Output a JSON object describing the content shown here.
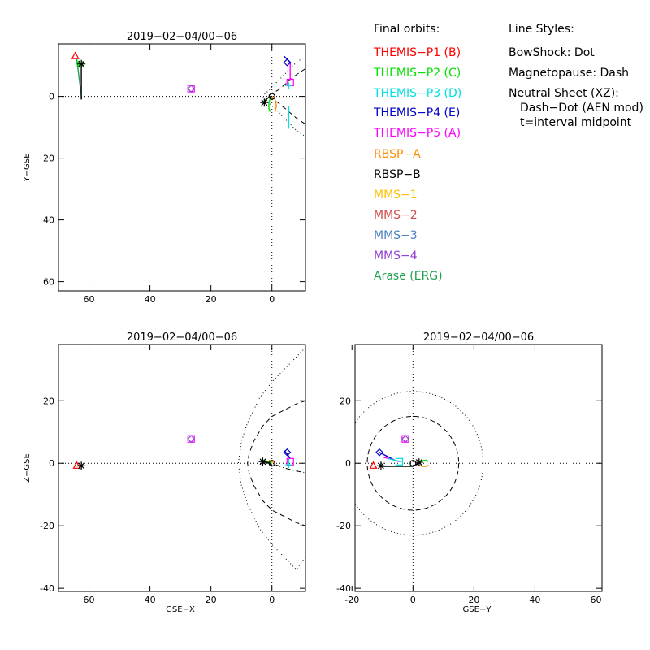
{
  "legend": {
    "orbits_title": "Final orbits:",
    "orbits": [
      {
        "label": "THEMIS−P1 (B)",
        "color": "#ff0000"
      },
      {
        "label": "THEMIS−P2 (C)",
        "color": "#00e000"
      },
      {
        "label": "THEMIS−P3 (D)",
        "color": "#00e0e0"
      },
      {
        "label": "THEMIS−P4 (E)",
        "color": "#0000c8"
      },
      {
        "label": "THEMIS−P5 (A)",
        "color": "#ff00ff"
      },
      {
        "label": "RBSP−A",
        "color": "#ff8c00"
      },
      {
        "label": "RBSP−B",
        "color": "#000000"
      },
      {
        "label": "MMS−1",
        "color": "#ffc000"
      },
      {
        "label": "MMS−2",
        "color": "#d05050"
      },
      {
        "label": "MMS−3",
        "color": "#4a80c0"
      },
      {
        "label": "MMS−4",
        "color": "#9040d0"
      },
      {
        "label": "Arase (ERG)",
        "color": "#20a050"
      }
    ],
    "styles_title": "Line Styles:",
    "styles": [
      "BowShock: Dot",
      "Magnetopause: Dash",
      "Neutral Sheet (XZ):",
      "Dash−Dot (AEN mod)",
      "t=interval midpoint"
    ]
  },
  "chart_data": [
    {
      "id": "xy",
      "type": "line",
      "title": "2019−02−04/00−06",
      "xlabel": "",
      "ylabel": "Y−GSE",
      "xlim": [
        70,
        -11
      ],
      "ylim": [
        63,
        -17
      ],
      "xticks": [
        60,
        40,
        20,
        0
      ],
      "yticks": [
        60,
        40,
        20,
        0
      ],
      "boundaries": [
        {
          "name": "bow-shock",
          "style": "dotted",
          "points": [
            [
              -11,
              -13
            ],
            [
              -8,
              -11
            ],
            [
              -5,
              -8
            ],
            [
              -2,
              -5
            ],
            [
              0,
              -3
            ],
            [
              2,
              -1
            ],
            [
              3.5,
              0
            ],
            [
              2,
              1
            ],
            [
              0,
              3
            ],
            [
              -2,
              5
            ],
            [
              -5,
              8
            ],
            [
              -8,
              11
            ],
            [
              -11,
              13
            ]
          ]
        },
        {
          "name": "magnetopause",
          "style": "dashed",
          "points": [
            [
              -11,
              -9
            ],
            [
              -8,
              -7
            ],
            [
              -5,
              -4.5
            ],
            [
              -2,
              -2
            ],
            [
              0,
              -1
            ],
            [
              1.5,
              0
            ],
            [
              0,
              1
            ],
            [
              -2,
              2
            ],
            [
              -5,
              4.5
            ],
            [
              -8,
              7
            ],
            [
              -11,
              9
            ]
          ]
        }
      ],
      "series": [
        {
          "color": "#00e0e0",
          "points": [
            [
              -5.5,
              10.5
            ],
            [
              -5.5,
              8
            ],
            [
              -5.5,
              5
            ],
            [
              -5.5,
              3
            ]
          ]
        },
        {
          "color": "#0000c8",
          "points": [
            [
              -4,
              -13
            ],
            [
              -5,
              -12
            ],
            [
              -6,
              -11
            ],
            [
              -6,
              -10
            ]
          ]
        },
        {
          "color": "#ff00ff",
          "points": [
            [
              -6,
              -11
            ],
            [
              -6,
              -9
            ],
            [
              -6,
              -7
            ],
            [
              -6,
              -5
            ]
          ]
        },
        {
          "color": "#00e000",
          "points": [
            [
              0.5,
              5
            ],
            [
              1,
              4
            ],
            [
              1,
              2
            ],
            [
              0.5,
              0.5
            ],
            [
              0,
              0
            ]
          ]
        },
        {
          "color": "#ff8c00",
          "points": [
            [
              -1,
              5
            ],
            [
              -1.5,
              3
            ],
            [
              -1,
              1
            ],
            [
              0,
              0
            ]
          ]
        },
        {
          "color": "#000000",
          "points": [
            [
              2.5,
              2
            ],
            [
              2,
              1
            ],
            [
              1,
              0.3
            ],
            [
              0,
              0
            ]
          ]
        },
        {
          "color": "#20a050",
          "points": [
            [
              64,
              -12
            ],
            [
              63.5,
              -8
            ],
            [
              63,
              -4
            ],
            [
              62.5,
              0
            ],
            [
              62.5,
              1
            ]
          ]
        },
        {
          "color": "#000000",
          "points": [
            [
              62.5,
              -11
            ],
            [
              62.5,
              -6
            ],
            [
              62.5,
              -2
            ],
            [
              62.5,
              1
            ]
          ]
        }
      ],
      "markers": [
        {
          "shape": "triangle",
          "color": "#ff0000",
          "x": 64.5,
          "y": -13
        },
        {
          "shape": "star",
          "color": "#00e000",
          "x": 63,
          "y": -10.5
        },
        {
          "shape": "star",
          "color": "#000000",
          "x": 62.5,
          "y": -10.5
        },
        {
          "shape": "square",
          "color": "#ff00ff",
          "x": 26.5,
          "y": -2.5
        },
        {
          "shape": "diamond",
          "color": "#9040d0",
          "x": 26.5,
          "y": -2.5
        },
        {
          "shape": "diamond",
          "color": "#0000c8",
          "x": -5,
          "y": -11
        },
        {
          "shape": "square",
          "color": "#ff00ff",
          "x": -6,
          "y": -4.5
        },
        {
          "shape": "plus",
          "color": "#00e0e0",
          "x": -5.5,
          "y": -3.5
        },
        {
          "shape": "star",
          "color": "#000000",
          "x": 2.5,
          "y": 2
        },
        {
          "shape": "circle",
          "color": "#000000",
          "x": 0,
          "y": 0
        }
      ]
    },
    {
      "id": "xz",
      "type": "line",
      "title": "2019−02−04/00−06",
      "xlabel": "GSE−X",
      "ylabel": "Z−GSE",
      "xlim": [
        70,
        -11
      ],
      "ylim": [
        -41,
        38
      ],
      "xticks": [
        60,
        40,
        20,
        0
      ],
      "yticks": [
        -40,
        -20,
        0,
        20
      ],
      "boundaries": [
        {
          "name": "bow-shock",
          "style": "dotted",
          "points": [
            [
              -11,
              37
            ],
            [
              -8,
              34
            ],
            [
              -4,
              30
            ],
            [
              0,
              26
            ],
            [
              4,
              21
            ],
            [
              8,
              13
            ],
            [
              10,
              7
            ],
            [
              11,
              0
            ],
            [
              10,
              -7
            ],
            [
              8,
              -13
            ],
            [
              4,
              -21
            ],
            [
              0,
              -26
            ],
            [
              -4,
              -30
            ],
            [
              -8,
              -34
            ],
            [
              -11,
              -30
            ]
          ]
        },
        {
          "name": "magnetopause",
          "style": "dashed",
          "points": [
            [
              -11,
              20
            ],
            [
              -8,
              19
            ],
            [
              -4,
              17
            ],
            [
              0,
              15
            ],
            [
              3,
              12
            ],
            [
              6,
              7
            ],
            [
              7.5,
              3
            ],
            [
              8,
              0
            ],
            [
              7.5,
              -3
            ],
            [
              6,
              -7
            ],
            [
              3,
              -12
            ],
            [
              0,
              -15
            ],
            [
              -4,
              -17
            ],
            [
              -8,
              -19
            ],
            [
              -11,
              -20
            ]
          ]
        },
        {
          "name": "neutral-sheet",
          "style": "dashdot",
          "points": [
            [
              2,
              0.5
            ],
            [
              0,
              0
            ],
            [
              -4,
              -1.5
            ],
            [
              -8,
              -2.5
            ],
            [
              -11,
              -3
            ]
          ]
        }
      ],
      "series": [
        {
          "color": "#00e0e0",
          "points": [
            [
              -5.5,
              -1
            ],
            [
              -5.5,
              0.5
            ],
            [
              -5.5,
              2
            ]
          ]
        },
        {
          "color": "#0000c8",
          "points": [
            [
              -4,
              4
            ],
            [
              -5,
              3
            ],
            [
              -6,
              1.5
            ]
          ]
        },
        {
          "color": "#00e000",
          "points": [
            [
              3,
              1
            ],
            [
              1,
              0.5
            ],
            [
              0,
              0
            ]
          ]
        },
        {
          "color": "#ff8c00",
          "points": [
            [
              1,
              1
            ],
            [
              0,
              0.5
            ],
            [
              -1,
              0
            ]
          ]
        },
        {
          "color": "#000000",
          "points": [
            [
              3,
              0.5
            ],
            [
              1,
              0
            ],
            [
              0,
              -0.5
            ]
          ]
        },
        {
          "color": "#20a050",
          "points": [
            [
              64,
              -1
            ],
            [
              63,
              -0.5
            ],
            [
              62,
              -0.5
            ]
          ]
        }
      ],
      "markers": [
        {
          "shape": "triangle",
          "color": "#ff0000",
          "x": 64,
          "y": -0.8
        },
        {
          "shape": "star",
          "color": "#000000",
          "x": 62.5,
          "y": -0.8
        },
        {
          "shape": "square",
          "color": "#ff00ff",
          "x": 26.5,
          "y": 7.8
        },
        {
          "shape": "diamond",
          "color": "#9040d0",
          "x": 26.5,
          "y": 7.8
        },
        {
          "shape": "diamond",
          "color": "#0000c8",
          "x": -5,
          "y": 3.5
        },
        {
          "shape": "square",
          "color": "#ff00ff",
          "x": -6,
          "y": 0.5
        },
        {
          "shape": "plus",
          "color": "#00e0e0",
          "x": -5.5,
          "y": -0.5
        },
        {
          "shape": "star",
          "color": "#000000",
          "x": 3,
          "y": 0.5
        },
        {
          "shape": "circle",
          "color": "#000000",
          "x": 0,
          "y": 0
        }
      ]
    },
    {
      "id": "yz",
      "type": "line",
      "title": "2019−02−04/00−06",
      "xlabel": "GSE−Y",
      "ylabel": "",
      "xlim": [
        -19,
        62
      ],
      "ylim": [
        -41,
        38
      ],
      "xticks": [
        -20,
        0,
        20,
        40,
        60
      ],
      "yticks": [
        -40,
        -20,
        0,
        20
      ],
      "boundaries": [
        {
          "name": "bow-shock",
          "style": "dotted",
          "circle": {
            "cx": 0,
            "cy": 0,
            "r": 23
          }
        },
        {
          "name": "magnetopause",
          "style": "dashed",
          "circle": {
            "cx": 0,
            "cy": 0,
            "r": 15
          }
        }
      ],
      "series": [
        {
          "color": "#0000c8",
          "points": [
            [
              -11,
              3.5
            ],
            [
              -9,
              2.5
            ],
            [
              -7,
              1.5
            ],
            [
              -6,
              1
            ]
          ]
        },
        {
          "color": "#ff00ff",
          "points": [
            [
              -10,
              2
            ],
            [
              -8,
              1.5
            ],
            [
              -6,
              1
            ],
            [
              -4.5,
              0.5
            ]
          ]
        },
        {
          "color": "#00e0e0",
          "points": [
            [
              -8,
              1.5
            ],
            [
              -6,
              1
            ],
            [
              -4,
              0.5
            ]
          ]
        },
        {
          "color": "#000000",
          "points": [
            [
              -10,
              -1
            ],
            [
              -5,
              -1
            ],
            [
              0,
              -1
            ],
            [
              2,
              0.3
            ]
          ]
        },
        {
          "color": "#00e000",
          "points": [
            [
              2,
              0
            ],
            [
              3,
              0.8
            ],
            [
              4.5,
              1
            ],
            [
              5,
              0.5
            ]
          ]
        },
        {
          "color": "#ff8c00",
          "points": [
            [
              2,
              -0.5
            ],
            [
              3,
              -1
            ],
            [
              4.5,
              -1
            ],
            [
              5,
              -0.5
            ]
          ]
        }
      ],
      "markers": [
        {
          "shape": "triangle",
          "color": "#ff0000",
          "x": -13,
          "y": -0.8
        },
        {
          "shape": "star",
          "color": "#000000",
          "x": -10.5,
          "y": -0.8
        },
        {
          "shape": "square",
          "color": "#ff00ff",
          "x": -2.5,
          "y": 7.8
        },
        {
          "shape": "diamond",
          "color": "#9040d0",
          "x": -2.5,
          "y": 7.8
        },
        {
          "shape": "diamond",
          "color": "#0000c8",
          "x": -11,
          "y": 3.5
        },
        {
          "shape": "square",
          "color": "#00e0e0",
          "x": -4.5,
          "y": 0.5
        },
        {
          "shape": "star",
          "color": "#000000",
          "x": 2,
          "y": 0.3
        },
        {
          "shape": "circle",
          "color": "#000000",
          "x": 0,
          "y": 0
        }
      ]
    }
  ]
}
